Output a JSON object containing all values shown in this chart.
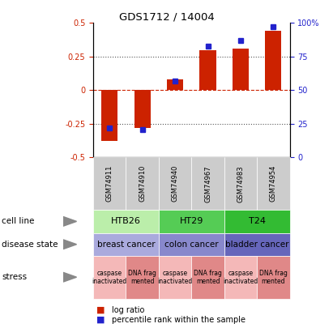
{
  "title": "GDS1712 / 14004",
  "samples": [
    "GSM74911",
    "GSM74910",
    "GSM74940",
    "GSM74967",
    "GSM74983",
    "GSM74954"
  ],
  "log_ratio": [
    -0.38,
    -0.28,
    0.08,
    0.3,
    0.31,
    0.44
  ],
  "percentile_rank": [
    22,
    21,
    57,
    83,
    87,
    97
  ],
  "bar_color": "#cc2200",
  "blue_color": "#2222cc",
  "cell_lines": [
    {
      "label": "HTB26",
      "cols": [
        0,
        1
      ],
      "color": "#bbeeaa"
    },
    {
      "label": "HT29",
      "cols": [
        2,
        3
      ],
      "color": "#55cc55"
    },
    {
      "label": "T24",
      "cols": [
        4,
        5
      ],
      "color": "#33bb33"
    }
  ],
  "disease_states": [
    {
      "label": "breast cancer",
      "cols": [
        0,
        1
      ],
      "color": "#aaaadd"
    },
    {
      "label": "colon cancer",
      "cols": [
        2,
        3
      ],
      "color": "#8888cc"
    },
    {
      "label": "bladder cancer",
      "cols": [
        4,
        5
      ],
      "color": "#6666bb"
    }
  ],
  "stresses": [
    {
      "label": "caspase\ninactivated",
      "col": 0,
      "color": "#f4b8b8"
    },
    {
      "label": "DNA frag\nmented",
      "col": 1,
      "color": "#e08888"
    },
    {
      "label": "caspase\ninactivated",
      "col": 2,
      "color": "#f4b8b8"
    },
    {
      "label": "DNA frag\nmented",
      "col": 3,
      "color": "#e08888"
    },
    {
      "label": "caspase\ninactivated",
      "col": 4,
      "color": "#f4b8b8"
    },
    {
      "label": "DNA frag\nmented",
      "col": 5,
      "color": "#e08888"
    }
  ],
  "sample_box_color": "#cccccc",
  "legend_log_ratio": "log ratio",
  "legend_percentile": "percentile rank within the sample",
  "row_labels": [
    "cell line",
    "disease state",
    "stress"
  ],
  "tick_positions_left": [
    -0.5,
    -0.25,
    0,
    0.25,
    0.5
  ],
  "tick_labels_left": [
    "-0.5",
    "-0.25",
    "0",
    "0.25",
    "0.5"
  ],
  "tick_positions_right": [
    0,
    25,
    50,
    75,
    100
  ],
  "tick_labels_right": [
    "0",
    "25",
    "50",
    "75",
    "100%"
  ],
  "background_color": "#ffffff"
}
